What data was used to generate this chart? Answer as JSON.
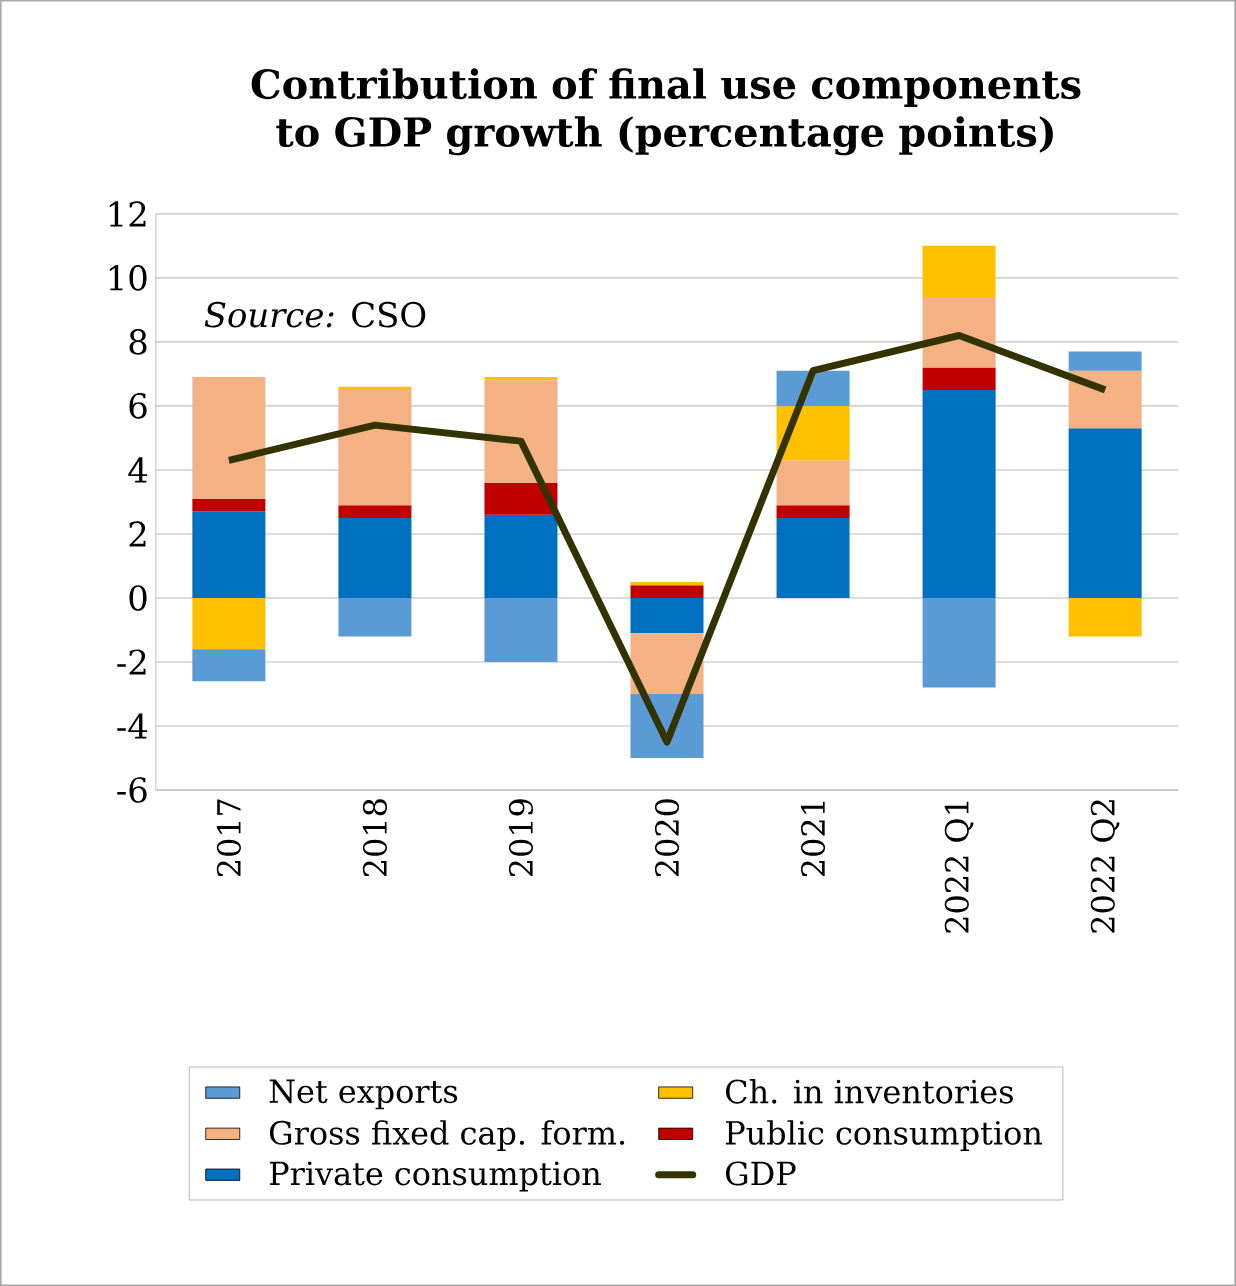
{
  "chart_data": {
    "type": "bar",
    "stacked": true,
    "title": "Contribution of final use components to GDP growth (percentage points)",
    "categories": [
      "2017",
      "2018",
      "2019",
      "2020",
      "2021",
      "2022 Q1",
      "2022 Q2"
    ],
    "series": [
      {
        "name": "Private consumption",
        "color": "#0070c0",
        "values": [
          2.7,
          2.5,
          2.6,
          -1.1,
          2.5,
          6.5,
          5.3
        ]
      },
      {
        "name": "Public consumption",
        "color": "#c00000",
        "values": [
          0.4,
          0.4,
          1.0,
          0.4,
          0.4,
          0.7,
          0
        ]
      },
      {
        "name": "Gross fixed cap. form.",
        "color": "#f4b183",
        "values": [
          3.8,
          3.6,
          3.2,
          -1.9,
          1.4,
          2.2,
          1.8
        ]
      },
      {
        "name": "Ch. in inventories",
        "color": "#ffc000",
        "values": [
          -1.6,
          0.1,
          0.1,
          0.1,
          1.7,
          1.6,
          -1.2
        ]
      },
      {
        "name": "Net exports",
        "color": "#5b9bd5",
        "values": [
          -1.0,
          -1.2,
          -2.0,
          -2.0,
          1.1,
          -2.8,
          0.6
        ]
      },
      {
        "name": "GDP",
        "type": "line",
        "color": "#333300",
        "values": [
          4.3,
          5.4,
          4.9,
          -4.5,
          7.1,
          8.2,
          6.5
        ]
      }
    ],
    "ylim": [
      -6,
      12
    ],
    "yticks": [
      -6,
      -4,
      -2,
      0,
      2,
      4,
      6,
      8,
      10,
      12
    ],
    "grid": "y",
    "legend": "bottom",
    "annotations": [
      "*Source:* CSO"
    ]
  }
}
